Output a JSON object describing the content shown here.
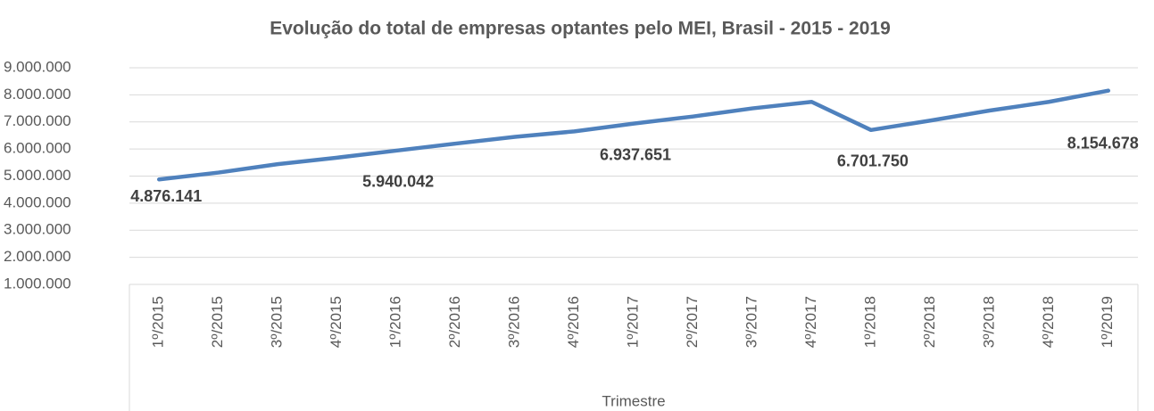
{
  "chart_data": {
    "type": "line",
    "title": "Evolução do total de empresas optantes pelo MEI, Brasil - 2015 - 2019",
    "x_label": "Trimestre",
    "categories": [
      "1º/2015",
      "2º/2015",
      "3º/2015",
      "4º/2015",
      "1º/2016",
      "2º/2016",
      "3º/2016",
      "4º/2016",
      "1º/2017",
      "2º/2017",
      "3º/2017",
      "4º/2017",
      "1º/2018",
      "2º/2018",
      "3º/2018",
      "4º/2018",
      "1º/2019"
    ],
    "values": [
      4876141,
      5130000,
      5440000,
      5680000,
      5940042,
      6200000,
      6450000,
      6650000,
      6937651,
      7200000,
      7500000,
      7740000,
      6701750,
      7050000,
      7420000,
      7740000,
      8154678
    ],
    "value_labels": [
      "4.876.141",
      null,
      null,
      null,
      "5.940.042",
      null,
      null,
      null,
      "6.937.651",
      null,
      null,
      null,
      "6.701.750",
      null,
      null,
      null,
      "8.154.678"
    ],
    "color": "#4f81bd",
    "ylim": [
      1000000,
      9000000
    ],
    "yticks": [
      {
        "value": 1000000,
        "label": "1.000.000"
      },
      {
        "value": 2000000,
        "label": "2.000.000"
      },
      {
        "value": 3000000,
        "label": "3.000.000"
      },
      {
        "value": 4000000,
        "label": "4.000.000"
      },
      {
        "value": 5000000,
        "label": "5.000.000"
      },
      {
        "value": 6000000,
        "label": "6.000.000"
      },
      {
        "value": 7000000,
        "label": "7.000.000"
      },
      {
        "value": 8000000,
        "label": "8.000.000"
      },
      {
        "value": 9000000,
        "label": "9.000.000"
      }
    ],
    "grid": true
  }
}
